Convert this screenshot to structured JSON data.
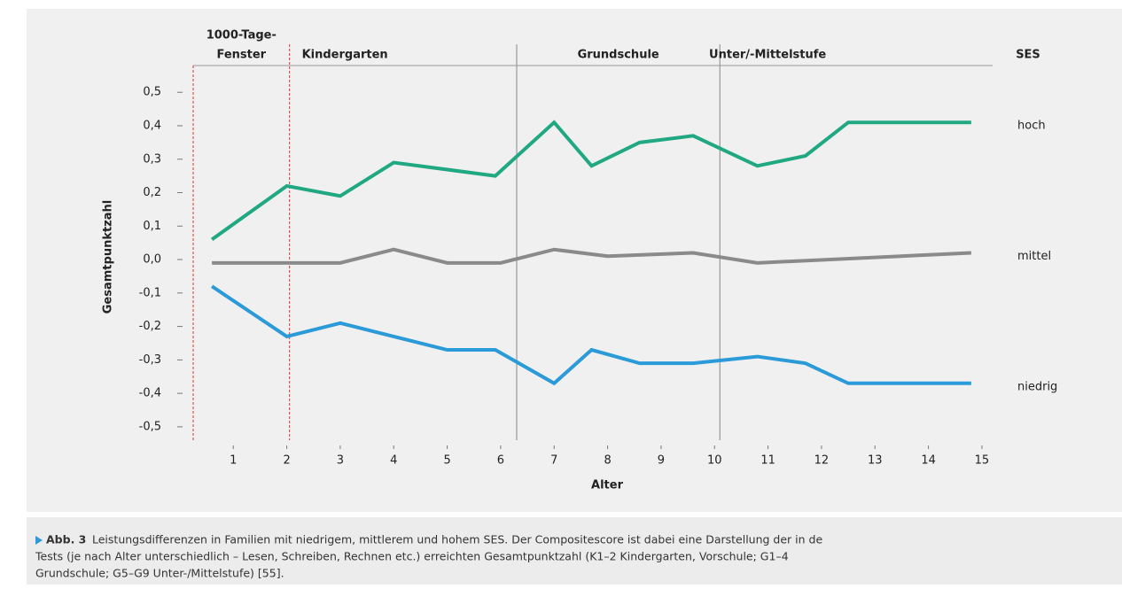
{
  "chart_data": {
    "type": "line",
    "phases": [
      {
        "label": [
          "1000-Tage-",
          "Fenster"
        ],
        "start": 0.25,
        "end": 2.05,
        "color": "#d9534f"
      },
      {
        "label": [
          "Kindergarten"
        ],
        "start": 2.05,
        "end": 6.3,
        "color": "#d9534f"
      },
      {
        "label": [
          "Grundschule"
        ],
        "start": 6.3,
        "end": 10.1,
        "color": "#999999"
      },
      {
        "label": [
          "Unter/-Mittelstufe"
        ],
        "start": 10.1,
        "end": 15.2,
        "color": "#999999"
      }
    ],
    "legend_title": "SES",
    "y_label": "Gesamtpunktzahl",
    "x_label": "Alter",
    "xlim": [
      0.25,
      15.2
    ],
    "xticks": [
      1,
      2,
      3,
      4,
      5,
      6,
      7,
      8,
      9,
      10,
      11,
      12,
      13,
      14,
      15
    ],
    "ylim": [
      -0.54,
      0.58
    ],
    "yticks": [
      {
        "value": 0.5,
        "label": "0,5"
      },
      {
        "value": 0.4,
        "label": "0,4"
      },
      {
        "value": 0.3,
        "label": "0,3"
      },
      {
        "value": 0.2,
        "label": "0,2"
      },
      {
        "value": 0.1,
        "label": "0,1"
      },
      {
        "value": 0,
        "label": "0,0"
      },
      {
        "value": -0.1,
        "label": "-0,1"
      },
      {
        "value": -0.2,
        "label": "-0,2"
      },
      {
        "value": -0.3,
        "label": "-0,3"
      },
      {
        "value": -0.4,
        "label": "-0,4"
      },
      {
        "value": -0.5,
        "label": "-0,5"
      }
    ],
    "series": [
      {
        "name": "hoch",
        "color": "#1fa882",
        "x": [
          0.6,
          2,
          3,
          4,
          5.9,
          7,
          7.7,
          8.6,
          9.6,
          10.8,
          11.7,
          12.5,
          14.8
        ],
        "values": [
          0.06,
          0.22,
          0.19,
          0.29,
          0.25,
          0.41,
          0.28,
          0.35,
          0.37,
          0.28,
          0.31,
          0.41,
          0.41
        ]
      },
      {
        "name": "mittel",
        "color": "#8a8a8a",
        "x": [
          0.6,
          3,
          4,
          5,
          6,
          7,
          8,
          9.6,
          10.8,
          14.8
        ],
        "values": [
          -0.01,
          -0.01,
          0.03,
          -0.01,
          -0.01,
          0.03,
          0.01,
          0.02,
          -0.01,
          0.02
        ]
      },
      {
        "name": "niedrig",
        "color": "#2a9ad8",
        "x": [
          0.6,
          2,
          3,
          4,
          5,
          5.9,
          7,
          7.7,
          8.6,
          9.6,
          10.8,
          11.7,
          12.5,
          14.8
        ],
        "values": [
          -0.08,
          -0.23,
          -0.19,
          -0.23,
          -0.27,
          -0.27,
          -0.37,
          -0.27,
          -0.31,
          -0.31,
          -0.29,
          -0.31,
          -0.37,
          -0.37
        ]
      }
    ]
  },
  "caption": {
    "label": "Abb. 3",
    "lines": [
      "Leistungsdifferenzen in Familien mit niedrigem, mittlerem und hohem SES. Der Compositescore ist dabei eine Darstellung der in de",
      "Tests (je nach Alter unterschiedlich – Lesen, Schreiben, Rechnen etc.) erreichten Gesamtpunktzahl (K1–2 Kindergarten, Vorschule; G1–4",
      "Grundschule; G5–G9 Unter-/Mittelstufe) [55]."
    ]
  }
}
